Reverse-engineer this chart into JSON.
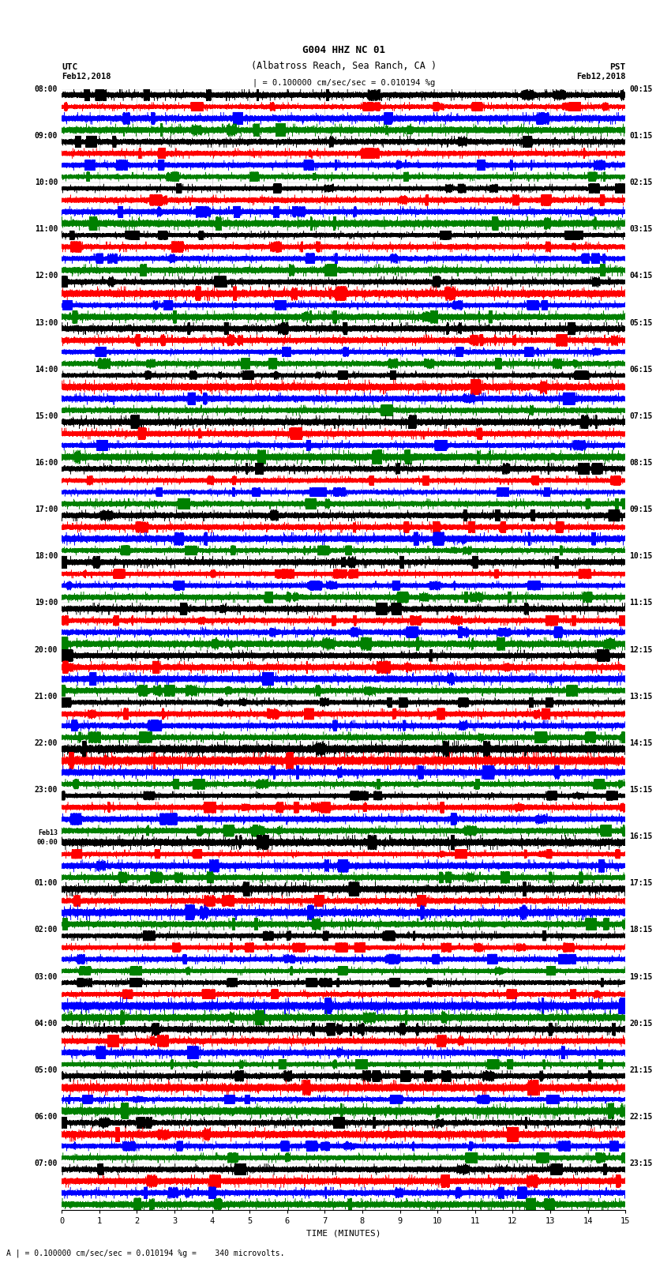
{
  "title_line1": "G004 HHZ NC 01",
  "title_line2": "(Albatross Reach, Sea Ranch, CA )",
  "scale_text": "= 0.100000 cm/sec/sec = 0.010194 %g",
  "bottom_text": "= 0.100000 cm/sec/sec = 0.010194 %g =    340 microvolts.",
  "xlabel": "TIME (MINUTES)",
  "left_times": [
    "08:00",
    "09:00",
    "10:00",
    "11:00",
    "12:00",
    "13:00",
    "14:00",
    "15:00",
    "16:00",
    "17:00",
    "18:00",
    "19:00",
    "20:00",
    "21:00",
    "22:00",
    "23:00",
    "Feb13\n00:00",
    "01:00",
    "02:00",
    "03:00",
    "04:00",
    "05:00",
    "06:00",
    "07:00"
  ],
  "right_times": [
    "00:15",
    "01:15",
    "02:15",
    "03:15",
    "04:15",
    "05:15",
    "06:15",
    "07:15",
    "08:15",
    "09:15",
    "10:15",
    "11:15",
    "12:15",
    "13:15",
    "14:15",
    "15:15",
    "16:15",
    "17:15",
    "18:15",
    "19:15",
    "20:15",
    "21:15",
    "22:15",
    "23:15"
  ],
  "colors": [
    "black",
    "red",
    "blue",
    "green"
  ],
  "n_rows": 24,
  "traces_per_row": 4,
  "minutes": 15,
  "sample_rate": 100,
  "xticks": [
    0,
    1,
    2,
    3,
    4,
    5,
    6,
    7,
    8,
    9,
    10,
    11,
    12,
    13,
    14,
    15
  ]
}
